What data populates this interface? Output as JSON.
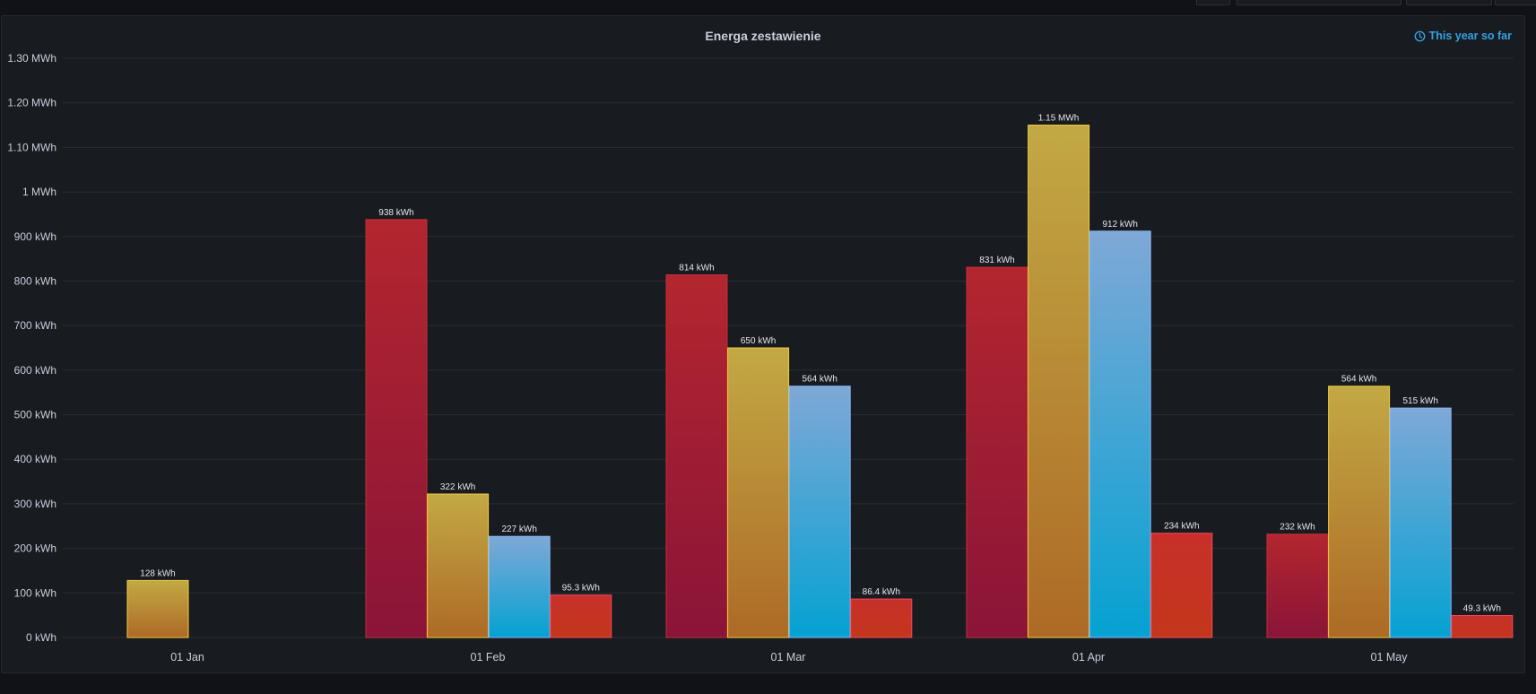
{
  "panel": {
    "title": "Energa zestawienie",
    "time_range": "This year so far",
    "time_icon": "clock-icon"
  },
  "colors": {
    "background": "#111217",
    "panel": "#181b1f",
    "grid": "#2a2d33",
    "text": "#ccccdc",
    "accent": "#33a2e5"
  },
  "chart_data": {
    "type": "bar",
    "title": "Energa zestawienie",
    "categories": [
      "01 Jan",
      "01 Feb",
      "01 Mar",
      "01 Apr",
      "01 May"
    ],
    "unit": "kWh",
    "ylim": [
      0,
      1300
    ],
    "yticks": [
      {
        "value": 0,
        "label": "0 kWh"
      },
      {
        "value": 100,
        "label": "100 kWh"
      },
      {
        "value": 200,
        "label": "200 kWh"
      },
      {
        "value": 300,
        "label": "300 kWh"
      },
      {
        "value": 400,
        "label": "400 kWh"
      },
      {
        "value": 500,
        "label": "500 kWh"
      },
      {
        "value": 600,
        "label": "600 kWh"
      },
      {
        "value": 700,
        "label": "700 kWh"
      },
      {
        "value": 800,
        "label": "800 kWh"
      },
      {
        "value": 900,
        "label": "900 kWh"
      },
      {
        "value": 1000,
        "label": "1 MWh"
      },
      {
        "value": 1100,
        "label": "1.10 MWh"
      },
      {
        "value": 1200,
        "label": "1.20 MWh"
      },
      {
        "value": 1300,
        "label": "1.30 MWh"
      }
    ],
    "grid": true,
    "legend": "none",
    "series": [
      {
        "color_top": "#b3262f",
        "color_bottom": "#8a1438",
        "stroke": "#c42f37",
        "values": [
          null,
          938,
          814,
          831,
          232
        ],
        "labels": [
          "",
          "938 kWh",
          "814 kWh",
          "831 kWh",
          "232 kWh"
        ]
      },
      {
        "color_top": "#c2a944",
        "color_bottom": "#ad6a26",
        "stroke": "#f2cc40",
        "values": [
          128,
          322,
          650,
          1150,
          564
        ],
        "labels": [
          "128 kWh",
          "322 kWh",
          "650 kWh",
          "1.15 MWh",
          "564 kWh"
        ]
      },
      {
        "color_top": "#7fa8d6",
        "color_bottom": "#04a2d2",
        "stroke": "#8ab8ff",
        "values": [
          null,
          227,
          564,
          912,
          515
        ],
        "labels": [
          "",
          "227 kWh",
          "564 kWh",
          "912 kWh",
          "515 kWh"
        ]
      },
      {
        "color_top": "#c7302a",
        "color_bottom": "#c4361c",
        "stroke": "#f2495c",
        "values": [
          null,
          95.3,
          86.4,
          234,
          49.3
        ],
        "labels": [
          "",
          "95.3 kWh",
          "86.4 kWh",
          "234 kWh",
          "49.3 kWh"
        ]
      }
    ]
  }
}
